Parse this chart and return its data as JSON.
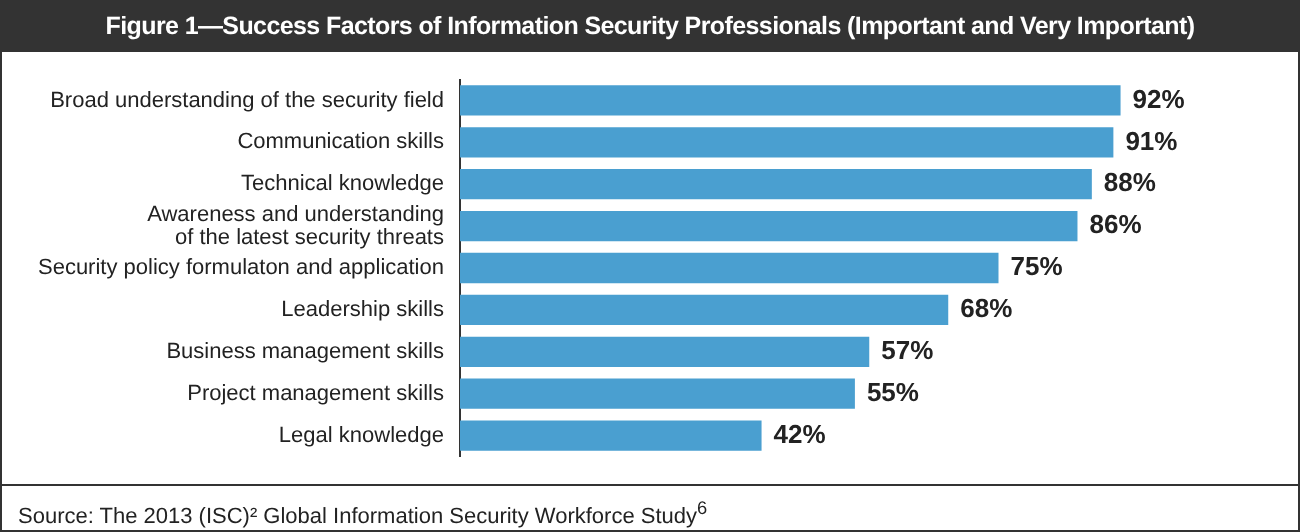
{
  "chart_data": {
    "type": "bar",
    "orientation": "horizontal",
    "title": "Figure 1—Success Factors of Information Security Professionals (Important and Very Important)",
    "categories": [
      "Broad understanding of the security field",
      "Communication skills",
      "Technical knowledge",
      "Awareness and understanding\nof the latest security threats",
      "Security policy formulaton and application",
      "Leadership skills",
      "Business management skills",
      "Project management skills",
      "Legal knowledge"
    ],
    "values": [
      92,
      91,
      88,
      86,
      75,
      68,
      57,
      55,
      42
    ],
    "value_labels": [
      "92%",
      "91%",
      "88%",
      "86%",
      "75%",
      "68%",
      "57%",
      "55%",
      "42%"
    ],
    "color": "#4a9fd0",
    "annotations": [
      "Source:  The 2013 (ISC)² Global Information Security Workforce Study$^{6}$"
    ]
  }
}
